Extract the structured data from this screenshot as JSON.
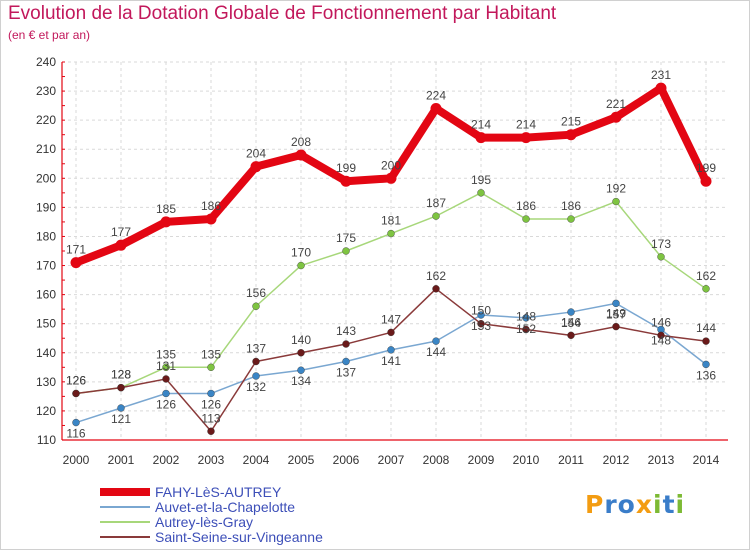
{
  "title": "Evolution de la Dotation Globale de Fonctionnement par Habitant",
  "subtitle": "(en € et par an)",
  "logo": {
    "letters": [
      "P",
      "r",
      "o",
      "x",
      "i",
      "t",
      "i"
    ],
    "colors": [
      "#f39c12",
      "#3a7dc9",
      "#3a7dc9",
      "#f39c12",
      "#7dba34",
      "#3a7dc9",
      "#7dba34"
    ]
  },
  "chart_data": {
    "type": "line",
    "title": "Evolution de la Dotation Globale de Fonctionnement par Habitant",
    "subtitle": "(en € et par an)",
    "xlabel": "",
    "ylabel": "",
    "ylim": [
      110,
      240
    ],
    "yticks": [
      110,
      120,
      130,
      140,
      150,
      160,
      170,
      180,
      190,
      200,
      210,
      220,
      230,
      240
    ],
    "categories": [
      "2000",
      "2001",
      "2002",
      "2003",
      "2004",
      "2005",
      "2006",
      "2007",
      "2008",
      "2009",
      "2010",
      "2011",
      "2012",
      "2013",
      "2014"
    ],
    "grid": true,
    "legend_position": "bottom-left",
    "series": [
      {
        "name": "FAHY-LèS-AUTREY",
        "color": "#e30613",
        "marker": "#e30613",
        "width": 8,
        "values": [
          171,
          177,
          185,
          186,
          204,
          208,
          199,
          200,
          224,
          214,
          214,
          215,
          221,
          231,
          199
        ]
      },
      {
        "name": "Auvet-et-la-Chapelotte",
        "color": "#7aa7d1",
        "marker": "#3a85c5",
        "width": 1.5,
        "values": [
          116,
          121,
          126,
          126,
          132,
          134,
          137,
          141,
          144,
          153,
          152,
          154,
          157,
          148,
          136
        ]
      },
      {
        "name": "Autrey-lès-Gray",
        "color": "#a7d77a",
        "marker": "#7ec441",
        "width": 1.5,
        "values": [
          126,
          128,
          135,
          135,
          156,
          170,
          175,
          181,
          187,
          195,
          186,
          186,
          192,
          173,
          162
        ]
      },
      {
        "name": "Saint-Seine-sur-Vingeanne",
        "color": "#8a3a3a",
        "marker": "#6a1a1a",
        "width": 1.5,
        "values": [
          126,
          128,
          131,
          113,
          137,
          140,
          143,
          147,
          162,
          150,
          148,
          146,
          149,
          146,
          144
        ]
      }
    ]
  }
}
